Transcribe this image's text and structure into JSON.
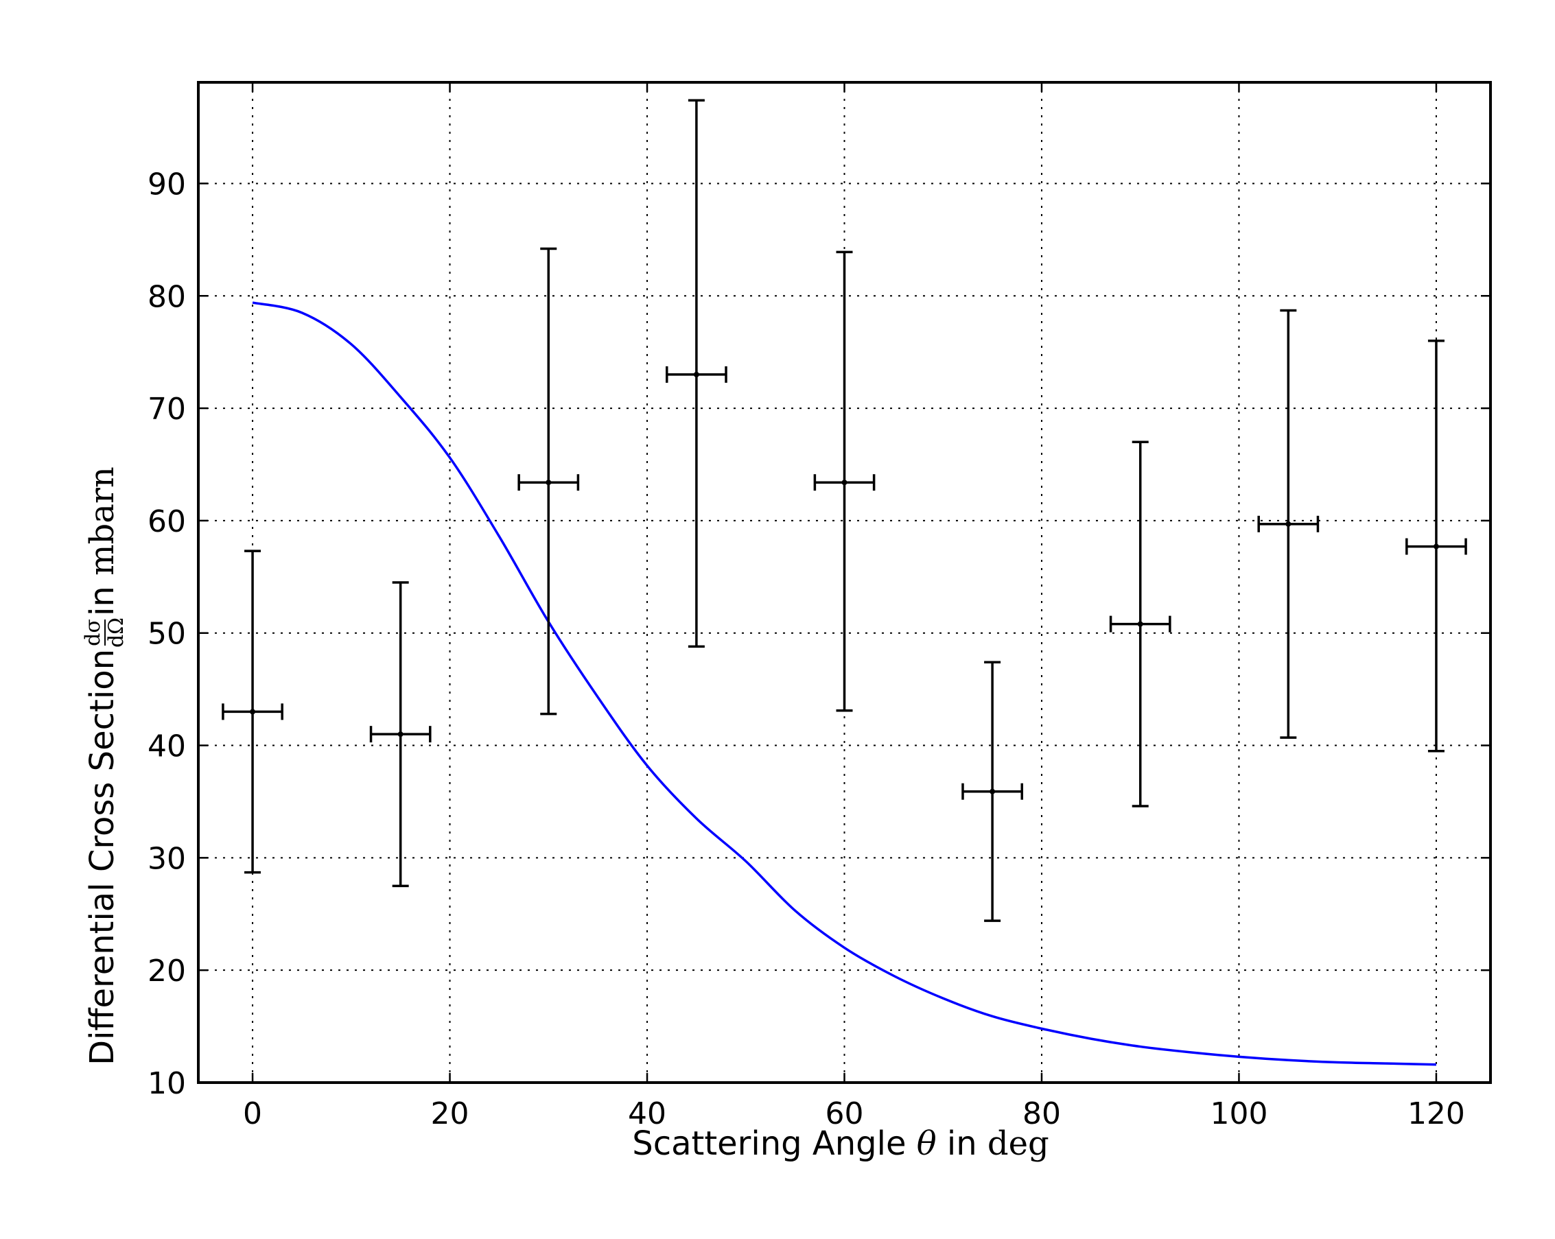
{
  "chart_data": {
    "type": "scatter",
    "title": "",
    "xlabel": {
      "prefix": "Scattering Angle ",
      "symbol": "θ",
      "mid": " in ",
      "unit": "deg"
    },
    "ylabel": {
      "prefix": "Differential Cross Section ",
      "frac_num": "dσ",
      "frac_den": "dΩ",
      "mid": " in ",
      "unit": "mbarn"
    },
    "xlim": [
      -5.5,
      125.5
    ],
    "ylim": [
      10,
      99
    ],
    "xticks": [
      0,
      20,
      40,
      60,
      80,
      100,
      120
    ],
    "yticks": [
      10,
      20,
      30,
      40,
      50,
      60,
      70,
      80,
      90
    ],
    "grid": true,
    "series": [
      {
        "kind": "errorbar",
        "color": "#000000",
        "x": [
          0,
          15,
          30,
          45,
          60,
          75,
          90,
          105,
          120
        ],
        "y": [
          43,
          41,
          63.4,
          73,
          63.4,
          35.9,
          50.8,
          59.7,
          57.7
        ],
        "xerr": [
          3,
          3,
          3,
          3,
          3,
          3,
          3,
          3,
          3
        ],
        "yerr_low": [
          14.3,
          13.5,
          20.6,
          24.2,
          20.3,
          11.5,
          16.2,
          19.0,
          18.2
        ],
        "yerr_high": [
          14.3,
          13.5,
          20.8,
          24.4,
          20.5,
          11.5,
          16.2,
          19.0,
          18.3
        ]
      },
      {
        "kind": "line",
        "color": "#0000ff",
        "x": [
          0,
          5,
          10,
          15,
          20,
          25,
          30,
          35,
          40,
          45,
          50,
          55,
          60,
          65,
          70,
          75,
          80,
          85,
          90,
          95,
          100,
          105,
          110,
          115,
          120
        ],
        "y": [
          79.4,
          78.5,
          75.7,
          71.0,
          65.6,
          58.6,
          51.0,
          44.3,
          38.2,
          33.5,
          29.7,
          25.3,
          22.0,
          19.5,
          17.5,
          15.9,
          14.8,
          13.9,
          13.2,
          12.7,
          12.3,
          12.0,
          11.8,
          11.7,
          11.6
        ]
      }
    ]
  }
}
